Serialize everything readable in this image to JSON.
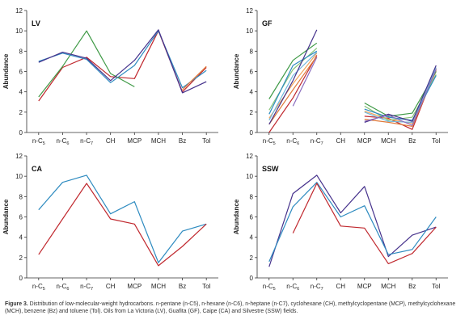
{
  "chart_data": [
    {
      "type": "line",
      "panel_label": "LV",
      "categories": [
        "n-C5",
        "n-C6",
        "n-C7",
        "CH",
        "MCP",
        "MCH",
        "Bz",
        "Tol"
      ],
      "ylabel": "Abundance",
      "ylim": [
        0,
        12
      ],
      "yticks": [
        0,
        2,
        4,
        6,
        8,
        10,
        12
      ],
      "series": [
        {
          "color": "#c0282e",
          "values": [
            3.1,
            6.4,
            7.4,
            5.5,
            5.3,
            10.0,
            4.0,
            6.4
          ]
        },
        {
          "color": "#3f9a46",
          "values": [
            3.5,
            6.5,
            10.0,
            5.8,
            4.5,
            null,
            null,
            null
          ]
        },
        {
          "color": "#2e8bc0",
          "values": [
            7.0,
            7.8,
            7.2,
            4.9,
            6.6,
            10.0,
            4.4,
            6.1
          ]
        },
        {
          "color": "#46328c",
          "values": [
            6.9,
            7.9,
            7.3,
            5.1,
            7.1,
            10.1,
            3.9,
            5.0
          ]
        },
        {
          "color": "#e07a3a",
          "values": [
            null,
            null,
            null,
            null,
            null,
            null,
            4.2,
            6.5
          ]
        }
      ]
    },
    {
      "type": "line",
      "panel_label": "GF",
      "categories": [
        "n-C5",
        "n-C6",
        "n-C7",
        "CH",
        "MCP",
        "MCH",
        "Bz",
        "Tol"
      ],
      "ylabel": "Abundance",
      "ylim": [
        0,
        12
      ],
      "yticks": [
        0,
        2,
        4,
        6,
        8,
        10,
        12
      ],
      "series": [
        {
          "color": "#c0282e",
          "values": [
            0.0,
            3.4,
            7.6,
            null,
            1.6,
            1.4,
            0.3,
            6.3
          ]
        },
        {
          "color": "#e07a3a",
          "values": [
            0.8,
            4.2,
            7.5,
            null,
            1.3,
            1.0,
            0.6,
            6.1
          ]
        },
        {
          "color": "#f2a55b",
          "values": [
            1.4,
            4.8,
            7.8,
            null,
            2.1,
            1.3,
            0.9,
            6.0
          ]
        },
        {
          "color": "#3f9a46",
          "values": [
            3.3,
            7.1,
            8.8,
            null,
            2.9,
            1.6,
            1.9,
            6.0
          ]
        },
        {
          "color": "#88c47a",
          "values": [
            2.2,
            6.2,
            8.3,
            null,
            2.6,
            1.2,
            1.5,
            5.7
          ]
        },
        {
          "color": "#2e8bc0",
          "values": [
            1.8,
            6.6,
            8.0,
            null,
            2.3,
            1.5,
            1.2,
            5.6
          ]
        },
        {
          "color": "#6fb6dc",
          "values": [
            1.2,
            5.6,
            7.9,
            null,
            2.0,
            1.1,
            1.0,
            6.4
          ]
        },
        {
          "color": "#46328c",
          "values": [
            0.8,
            5.1,
            10.1,
            null,
            1.0,
            1.8,
            1.1,
            6.6
          ]
        },
        {
          "color": "#8a6dbf",
          "values": [
            null,
            2.6,
            7.4,
            null,
            1.1,
            1.7,
            0.7,
            6.2
          ]
        }
      ]
    },
    {
      "type": "line",
      "panel_label": "CA",
      "categories": [
        "n-C5",
        "n-C6",
        "n-C7",
        "CH",
        "MCP",
        "MCH",
        "Bz",
        "Tol"
      ],
      "ylabel": "Abundance",
      "ylim": [
        0,
        12
      ],
      "yticks": [
        0,
        2,
        4,
        6,
        8,
        10,
        12
      ],
      "series": [
        {
          "color": "#2e8bc0",
          "values": [
            6.7,
            9.4,
            10.1,
            6.3,
            7.5,
            1.5,
            4.6,
            5.3
          ]
        },
        {
          "color": "#c0282e",
          "values": [
            2.3,
            5.8,
            9.3,
            5.8,
            5.3,
            1.2,
            3.1,
            5.3
          ]
        }
      ]
    },
    {
      "type": "line",
      "panel_label": "SSW",
      "categories": [
        "n-C5",
        "n-C6",
        "n-C7",
        "CH",
        "MCP",
        "MCH",
        "Bz",
        "Tol"
      ],
      "ylabel": "Abundance",
      "ylim": [
        0,
        12
      ],
      "yticks": [
        0,
        2,
        4,
        6,
        8,
        10,
        12
      ],
      "series": [
        {
          "color": "#46328c",
          "values": [
            1.1,
            8.3,
            10.1,
            6.4,
            9.0,
            2.1,
            4.2,
            5.0
          ]
        },
        {
          "color": "#2e8bc0",
          "values": [
            1.6,
            7.0,
            9.4,
            6.0,
            7.1,
            2.3,
            2.8,
            6.0
          ]
        },
        {
          "color": "#c0282e",
          "values": [
            null,
            4.4,
            9.3,
            5.1,
            4.9,
            1.4,
            2.4,
            5.0
          ]
        }
      ]
    }
  ],
  "caption": {
    "lead": "Figure 3.",
    "text": "Distribution of low-molecular-weight hydrocarbons. n-pentane (n-C5), n-hexane (n-C6), n-heptane (n-C7), cyclohexane (CH), methylcyclopentane (MCP), methylcyclohexane (MCH), benzene (Bz) and toluene (Tol). Oils from La Victoria (LV), Guafita (GF), Caipe (CA) and Silvestre (SSW) fields."
  }
}
